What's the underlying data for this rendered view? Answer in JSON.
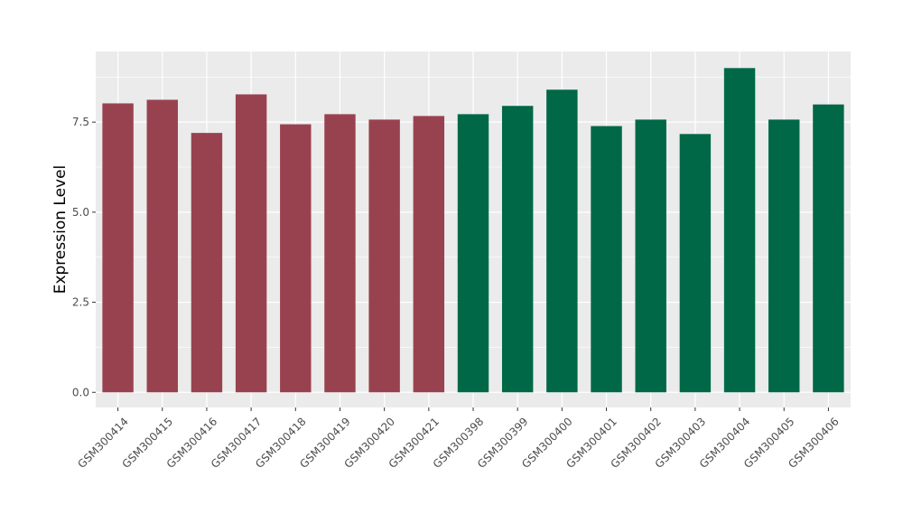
{
  "chart_data": {
    "type": "bar",
    "title": "",
    "xlabel": "",
    "ylabel": "Expression Level",
    "categories": [
      "GSM300414",
      "GSM300415",
      "GSM300416",
      "GSM300417",
      "GSM300418",
      "GSM300419",
      "GSM300420",
      "GSM300421",
      "GSM300398",
      "GSM300399",
      "GSM300400",
      "GSM300401",
      "GSM300402",
      "GSM300403",
      "GSM300404",
      "GSM300405",
      "GSM300406"
    ],
    "values": [
      8.02,
      8.12,
      7.2,
      8.27,
      7.44,
      7.72,
      7.57,
      7.67,
      7.72,
      7.95,
      8.4,
      7.39,
      7.57,
      7.17,
      9.0,
      7.57,
      7.99
    ],
    "bar_colors": [
      "#99424f",
      "#99424f",
      "#99424f",
      "#99424f",
      "#99424f",
      "#99424f",
      "#99424f",
      "#99424f",
      "#006847",
      "#006847",
      "#006847",
      "#006847",
      "#006847",
      "#006847",
      "#006847",
      "#006847",
      "#006847"
    ],
    "ylim": [
      -0.42,
      9.46
    ],
    "yticks": [
      0.0,
      2.5,
      5.0,
      7.5
    ],
    "ytick_labels": [
      "0.0",
      "2.5",
      "5.0",
      "7.5"
    ],
    "grid": true,
    "panel_color": "#ebebeb",
    "grid_color": "#ffffff"
  }
}
